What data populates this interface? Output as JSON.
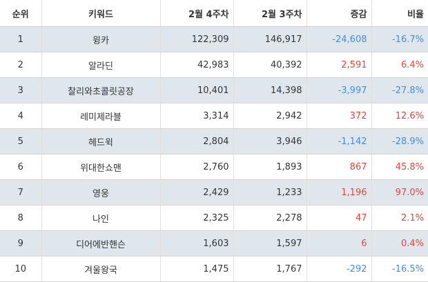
{
  "headers": {
    "rank": "순위",
    "keyword": "키워드",
    "week4": "2월 4주차",
    "week3": "2월 3주차",
    "diff": "증감",
    "rate": "비율"
  },
  "colors": {
    "negative": "#3f8de0",
    "positive": "#e8453c",
    "stripe": "#dfe7ec"
  },
  "rows": [
    {
      "rank": "1",
      "keyword": "윙카",
      "week4": "122,309",
      "week3": "146,917",
      "diff": "-24,608",
      "rate": "-16.7%",
      "trend": "neg"
    },
    {
      "rank": "2",
      "keyword": "알라딘",
      "week4": "42,983",
      "week3": "40,392",
      "diff": "2,591",
      "rate": "6.4%",
      "trend": "pos"
    },
    {
      "rank": "3",
      "keyword": "찰리와초콜릿공장",
      "week4": "10,401",
      "week3": "14,398",
      "diff": "-3,997",
      "rate": "-27.8%",
      "trend": "neg"
    },
    {
      "rank": "4",
      "keyword": "레미제라블",
      "week4": "3,314",
      "week3": "2,942",
      "diff": "372",
      "rate": "12.6%",
      "trend": "pos"
    },
    {
      "rank": "5",
      "keyword": "헤드윅",
      "week4": "2,804",
      "week3": "3,946",
      "diff": "-1,142",
      "rate": "-28.9%",
      "trend": "neg"
    },
    {
      "rank": "6",
      "keyword": "위대한쇼맨",
      "week4": "2,760",
      "week3": "1,893",
      "diff": "867",
      "rate": "45.8%",
      "trend": "pos"
    },
    {
      "rank": "7",
      "keyword": "영웅",
      "week4": "2,429",
      "week3": "1,233",
      "diff": "1,196",
      "rate": "97.0%",
      "trend": "pos"
    },
    {
      "rank": "8",
      "keyword": "나인",
      "week4": "2,325",
      "week3": "2,278",
      "diff": "47",
      "rate": "2.1%",
      "trend": "pos"
    },
    {
      "rank": "9",
      "keyword": "디어에반핸슨",
      "week4": "1,603",
      "week3": "1,597",
      "diff": "6",
      "rate": "0.4%",
      "trend": "pos"
    },
    {
      "rank": "10",
      "keyword": "겨울왕국",
      "week4": "1,475",
      "week3": "1,767",
      "diff": "-292",
      "rate": "-16.5%",
      "trend": "neg"
    }
  ]
}
